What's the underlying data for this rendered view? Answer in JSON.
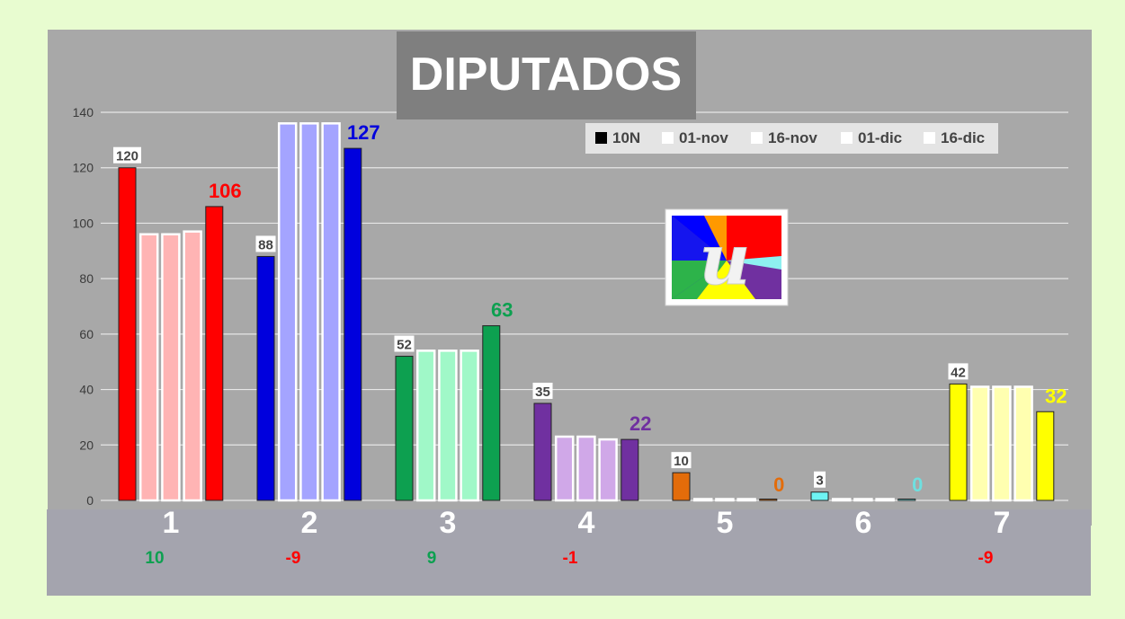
{
  "chart_data": {
    "type": "bar",
    "title": "DIPUTADOS",
    "categories": [
      "1",
      "2",
      "3",
      "4",
      "5",
      "6",
      "7"
    ],
    "ylim": [
      0,
      140
    ],
    "yticks": [
      "0",
      "20",
      "40",
      "60",
      "80",
      "100",
      "120",
      "140"
    ],
    "grid": true,
    "legend_position": "top-right",
    "series": [
      {
        "name": "10N",
        "values": [
          120,
          88,
          52,
          35,
          10,
          3,
          42
        ]
      },
      {
        "name": "01-nov",
        "values": [
          96,
          136,
          54,
          23,
          0,
          0,
          41
        ]
      },
      {
        "name": "16-nov",
        "values": [
          96,
          136,
          54,
          23,
          0,
          0,
          41
        ]
      },
      {
        "name": "01-dic",
        "values": [
          97,
          136,
          54,
          22,
          0,
          0,
          41
        ]
      },
      {
        "name": "16-dic",
        "values": [
          106,
          127,
          63,
          22,
          0,
          0,
          32
        ]
      }
    ],
    "first_labels": [
      "120",
      "88",
      "52",
      "35",
      "10",
      "3",
      "42"
    ],
    "last_labels": [
      "106",
      "127",
      "63",
      "22",
      "0",
      "0",
      "32"
    ],
    "changes": [
      "10",
      "-9",
      "9",
      "-1",
      "",
      "",
      "-9"
    ]
  },
  "colors": {
    "party": [
      "#ff0000",
      "#0000dd",
      "#0da050",
      "#7030a0",
      "#e36c0a",
      "#6ef3f3",
      "#ffff00"
    ],
    "party_light": [
      "#ffb4b4",
      "#a4a4ff",
      "#a0f8c8",
      "#d0a8e8",
      "#ffffff",
      "#ffffff",
      "#ffffb0"
    ],
    "last_label": [
      "#ff0000",
      "#0000dd",
      "#0da050",
      "#7030a0",
      "#e36c0a",
      "#6ee0e0",
      "#ffff00"
    ],
    "change_positive": "#0da050",
    "change_negative": "#ff0000",
    "plot_background": "#a8a8a8",
    "footer_background": "#a4a4ae",
    "page_background": "#e8fcd0"
  },
  "logo": {
    "letter": "u"
  }
}
